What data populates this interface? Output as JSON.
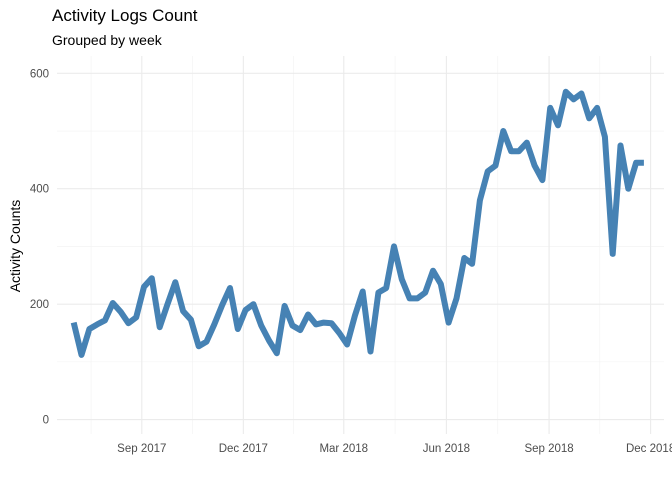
{
  "chart_data": {
    "type": "line",
    "title": "Activity Logs Count",
    "subtitle": "Grouped by week",
    "xlabel": "",
    "ylabel": "Activity Counts",
    "ylim": [
      -25,
      630
    ],
    "xlim": [
      "2017-06-17",
      "2018-12-13"
    ],
    "grid": true,
    "color": "#4682B4",
    "y_ticks": [
      0,
      200,
      400,
      600
    ],
    "y_tick_labels": [
      "0",
      "200",
      "400",
      "600"
    ],
    "x_ticks": [
      "2017-09-01",
      "2017-12-01",
      "2018-03-01",
      "2018-06-01",
      "2018-09-01",
      "2018-12-01"
    ],
    "x_tick_labels": [
      "Sep 2017",
      "Dec 2017",
      "Mar 2018",
      "Jun 2018",
      "Sep 2018",
      "Dec 2018"
    ],
    "series": [
      {
        "x": [
          "2017-07-02",
          "2017-07-09",
          "2017-07-16",
          "2017-07-23",
          "2017-07-30",
          "2017-08-06",
          "2017-08-13",
          "2017-08-20",
          "2017-08-27",
          "2017-09-03",
          "2017-09-10",
          "2017-09-17",
          "2017-09-24",
          "2017-10-01",
          "2017-10-08",
          "2017-10-15",
          "2017-10-22",
          "2017-10-29",
          "2017-11-05",
          "2017-11-12",
          "2017-11-19",
          "2017-11-26",
          "2017-12-03",
          "2017-12-10",
          "2017-12-17",
          "2017-12-24",
          "2017-12-31",
          "2018-01-07",
          "2018-01-14",
          "2018-01-21",
          "2018-01-28",
          "2018-02-04",
          "2018-02-11",
          "2018-02-18",
          "2018-02-25",
          "2018-03-04",
          "2018-03-11",
          "2018-03-18",
          "2018-03-25",
          "2018-04-01",
          "2018-04-08",
          "2018-04-15",
          "2018-04-22",
          "2018-04-29",
          "2018-05-06",
          "2018-05-13",
          "2018-05-20",
          "2018-05-27",
          "2018-06-03",
          "2018-06-10",
          "2018-06-17",
          "2018-06-24",
          "2018-07-01",
          "2018-07-08",
          "2018-07-15",
          "2018-07-22",
          "2018-07-29",
          "2018-08-05",
          "2018-08-12",
          "2018-08-19",
          "2018-08-26",
          "2018-09-02",
          "2018-09-09",
          "2018-09-16",
          "2018-09-23",
          "2018-09-30",
          "2018-10-07",
          "2018-10-14",
          "2018-10-21",
          "2018-10-28",
          "2018-11-04",
          "2018-11-11",
          "2018-11-18",
          "2018-11-25"
        ],
        "values": [
          168,
          112,
          157,
          165,
          172,
          202,
          187,
          167,
          177,
          230,
          245,
          160,
          200,
          238,
          188,
          173,
          127,
          135,
          165,
          198,
          228,
          157,
          190,
          200,
          163,
          137,
          115,
          197,
          163,
          155,
          182,
          165,
          168,
          167,
          150,
          130,
          180,
          222,
          118,
          220,
          228,
          300,
          243,
          210,
          210,
          220,
          258,
          235,
          168,
          210,
          280,
          270,
          380,
          430,
          440,
          500,
          465,
          465,
          480,
          440,
          415,
          540,
          510,
          568,
          555,
          565,
          522,
          540,
          490,
          287,
          475,
          400,
          445,
          445
        ]
      }
    ]
  }
}
